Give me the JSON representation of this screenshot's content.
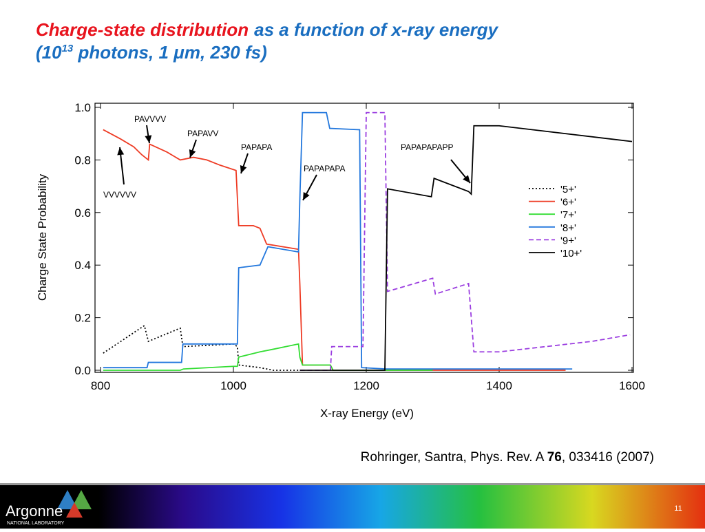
{
  "chart_data": {
    "type": "line",
    "title_parts": [
      "Charge-state distribution",
      "as a function of x-ray energy"
    ],
    "subtitle_parts": [
      "(10",
      "13",
      " photons, 1 μm, 230 fs)"
    ],
    "x_label": "X-ray Energy (eV)",
    "y_label": "Charge State Probability",
    "xlim": [
      800,
      1600
    ],
    "ylim": [
      0,
      1
    ],
    "xticks": [
      800,
      1000,
      1200,
      1400,
      1600
    ],
    "yticks": [
      {
        "value": 0,
        "label": "0.0"
      },
      0.2,
      0.4,
      0.6,
      0.8,
      {
        "value": 1,
        "label": "1.0"
      }
    ],
    "legend": "right",
    "series": [
      {
        "name": "'5+'",
        "color": "#000000",
        "dash": "dotted",
        "x": [
          804,
          866,
          872,
          920,
          924,
          1000,
          1006,
          1008,
          1040,
          1060,
          1100
        ],
        "values": [
          0.065,
          0.17,
          0.11,
          0.16,
          0.09,
          0.1,
          0.09,
          0.02,
          0.01,
          0.0,
          0.0
        ]
      },
      {
        "name": "'6+'",
        "color": "#ee3b24",
        "dash": "solid",
        "x": [
          804,
          830,
          850,
          862,
          872,
          874,
          900,
          920,
          940,
          960,
          980,
          1004,
          1008,
          1030,
          1040,
          1050,
          1098,
          1100,
          1104,
          1146,
          1150,
          1500
        ],
        "values": [
          0.915,
          0.88,
          0.85,
          0.82,
          0.8,
          0.86,
          0.83,
          0.8,
          0.81,
          0.8,
          0.78,
          0.76,
          0.55,
          0.55,
          0.54,
          0.48,
          0.46,
          0.33,
          0.02,
          0.02,
          0.0,
          0.0
        ]
      },
      {
        "name": "'7+'",
        "color": "#33dd33",
        "dash": "solid",
        "x": [
          804,
          920,
          925,
          1000,
          1006,
          1008,
          1040,
          1060,
          1098,
          1100,
          1104,
          1146,
          1150,
          1300
        ],
        "values": [
          0.0,
          0.0,
          0.005,
          0.015,
          0.015,
          0.05,
          0.07,
          0.08,
          0.1,
          0.05,
          0.02,
          0.02,
          0.0,
          0.0
        ]
      },
      {
        "name": "'8+'",
        "color": "#2277dd",
        "dash": "solid",
        "x": [
          804,
          870,
          872,
          922,
          924,
          1006,
          1008,
          1040,
          1052,
          1098,
          1100,
          1104,
          1140,
          1145,
          1190,
          1193,
          1230,
          1510
        ],
        "values": [
          0.01,
          0.01,
          0.03,
          0.03,
          0.1,
          0.1,
          0.39,
          0.4,
          0.47,
          0.45,
          0.65,
          0.98,
          0.98,
          0.92,
          0.915,
          0.01,
          0.005,
          0.005
        ]
      },
      {
        "name": "'9+'",
        "color": "#9b3ee0",
        "dash": "dashed",
        "x": [
          1100,
          1146,
          1148,
          1195,
          1200,
          1228,
          1232,
          1300,
          1304,
          1354,
          1362,
          1400,
          1540,
          1597
        ],
        "values": [
          0.0,
          0.0,
          0.09,
          0.09,
          0.98,
          0.98,
          0.3,
          0.35,
          0.29,
          0.33,
          0.07,
          0.07,
          0.11,
          0.135
        ]
      },
      {
        "name": "'10+'",
        "color": "#000000",
        "dash": "solid",
        "x": [
          1100,
          1228,
          1232,
          1298,
          1302,
          1354,
          1358,
          1362,
          1400,
          1600
        ],
        "values": [
          0.0,
          0.0,
          0.69,
          0.66,
          0.73,
          0.68,
          0.67,
          0.93,
          0.93,
          0.87
        ]
      }
    ],
    "annotations": [
      "PAVVVV",
      "PAPAVV",
      "PAPAPA",
      "PAPAPAPA",
      "PAPAPAPAPP",
      "VVVVVV"
    ]
  },
  "citation": [
    "Rohringer, Santra, Phys. Rev. A ",
    "76",
    ", 033416 (2007)"
  ],
  "footer": {
    "logo": "Argonne",
    "logo_sub": "NATIONAL LABORATORY",
    "page": "11"
  }
}
